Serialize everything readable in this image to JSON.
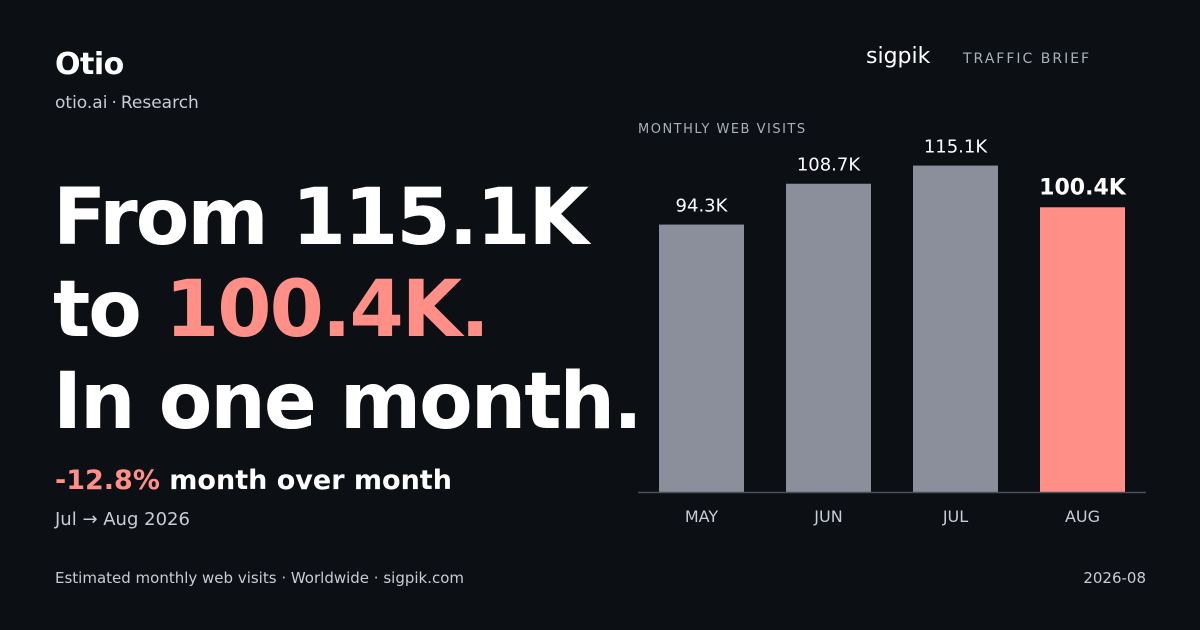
{
  "header": {
    "brand": "Otio",
    "site": "otio.ai",
    "section": "Research",
    "logo": "sigpik",
    "tag": "TRAFFIC BRIEF"
  },
  "headline": {
    "line1": "From 115.1K",
    "line2_prefix": "to ",
    "line2_value": "100.4K.",
    "line3": "In one month."
  },
  "change": {
    "percent": "-12.8%",
    "text": "month over month",
    "period": "Jul → Aug 2026"
  },
  "footer": {
    "source": "Estimated monthly web visits · Worldwide · sigpik.com",
    "date": "2026-08"
  },
  "colors": {
    "background": "#0c0f14",
    "accent": "#ff8f87",
    "bar": "#8a8f9b"
  },
  "chart_data": {
    "type": "bar",
    "title": "MONTHLY WEB VISITS",
    "categories": [
      "MAY",
      "JUN",
      "JUL",
      "AUG"
    ],
    "values": [
      94.3,
      108.7,
      115.1,
      100.4
    ],
    "value_labels": [
      "94.3K",
      "108.7K",
      "115.1K",
      "100.4K"
    ],
    "highlight_index": 3,
    "unit": "K",
    "ylim": [
      0,
      128
    ],
    "grid": false
  }
}
